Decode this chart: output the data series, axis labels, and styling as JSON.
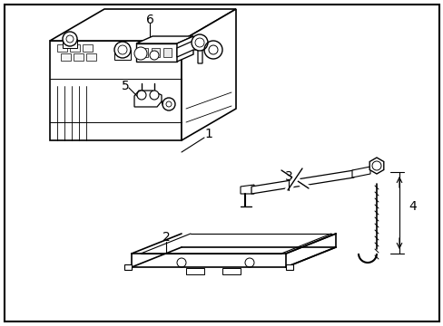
{
  "bg_color": "#ffffff",
  "line_color": "#000000",
  "fig_width": 4.89,
  "fig_height": 3.6,
  "dpi": 100,
  "label_fontsize": 10
}
